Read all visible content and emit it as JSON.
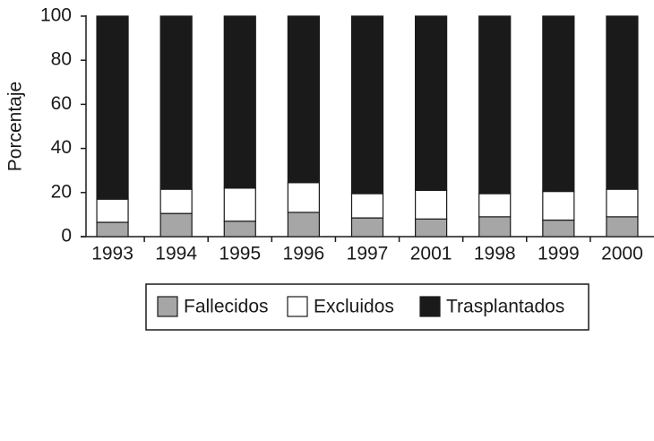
{
  "chart_data": {
    "type": "stacked-bar",
    "y_label": "Porcentaje",
    "categories": [
      "1993",
      "1994",
      "1995",
      "1996",
      "1997",
      "2001",
      "1998",
      "1999",
      "2000"
    ],
    "series": [
      {
        "name": "Fallecidos",
        "color": "#a6a6a6",
        "values": [
          6.5,
          10.5,
          7,
          11,
          8.5,
          8,
          9,
          7.5,
          9
        ]
      },
      {
        "name": "Excluidos",
        "color": "#ffffff",
        "values": [
          10.5,
          11,
          15,
          13.5,
          11,
          13,
          10.5,
          13,
          12.5
        ]
      },
      {
        "name": "Trasplantados",
        "color": "#1a1a1a",
        "values": [
          83,
          78.5,
          78,
          75.5,
          80.5,
          79,
          80.5,
          79.5,
          78.5
        ]
      }
    ],
    "ylim": [
      0,
      100
    ],
    "yticks": [
      0,
      20,
      40,
      60,
      80,
      100
    ],
    "grid": false
  }
}
